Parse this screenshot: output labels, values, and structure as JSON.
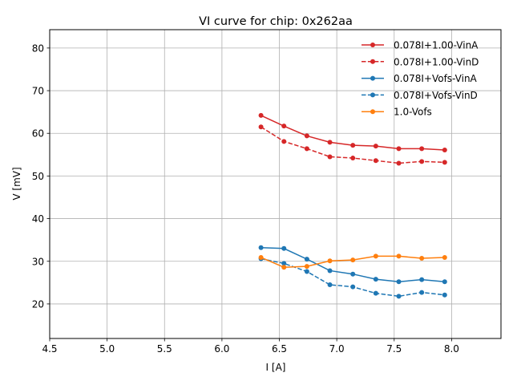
{
  "chart_data": {
    "type": "line",
    "title": "VI curve for chip: 0x262aa",
    "xlabel": "I [A]",
    "ylabel": "V [mV]",
    "xlim": [
      4.5,
      8.43
    ],
    "ylim": [
      11.9,
      84.3
    ],
    "xticks": [
      "4.5",
      "5.0",
      "5.5",
      "6.0",
      "6.5",
      "7.0",
      "7.5",
      "8.0"
    ],
    "xtick_values": [
      4.5,
      5.0,
      5.5,
      6.0,
      6.5,
      7.0,
      7.5,
      8.0
    ],
    "yticks": [
      "20",
      "30",
      "40",
      "50",
      "60",
      "70",
      "80"
    ],
    "ytick_values": [
      20,
      30,
      40,
      50,
      60,
      70,
      80
    ],
    "grid": true,
    "legend_position": "top-right",
    "x": [
      6.34,
      6.54,
      6.74,
      6.94,
      7.14,
      7.34,
      7.54,
      7.74,
      7.94
    ],
    "series": [
      {
        "name": "0.078I+1.00-VinA",
        "color": "#d62728",
        "dashed": false,
        "values": [
          64.2,
          61.7,
          59.4,
          57.9,
          57.2,
          57.0,
          56.4,
          56.4,
          56.1
        ]
      },
      {
        "name": "0.078I+1.00-VinD",
        "color": "#d62728",
        "dashed": true,
        "values": [
          61.5,
          58.1,
          56.4,
          54.5,
          54.2,
          53.6,
          53.0,
          53.4,
          53.2
        ]
      },
      {
        "name": "0.078I+Vofs-VinA",
        "color": "#1f77b4",
        "dashed": false,
        "values": [
          33.2,
          33.0,
          30.5,
          27.8,
          27.0,
          25.8,
          25.2,
          25.7,
          25.2
        ]
      },
      {
        "name": "0.078I+Vofs-VinD",
        "color": "#1f77b4",
        "dashed": true,
        "values": [
          30.6,
          29.5,
          27.6,
          24.5,
          24.0,
          22.5,
          21.8,
          22.7,
          22.1
        ]
      },
      {
        "name": "1.0-Vofs",
        "color": "#ff7f0e",
        "dashed": false,
        "values": [
          30.9,
          28.6,
          28.8,
          30.1,
          30.3,
          31.2,
          31.2,
          30.7,
          30.9
        ]
      }
    ]
  }
}
